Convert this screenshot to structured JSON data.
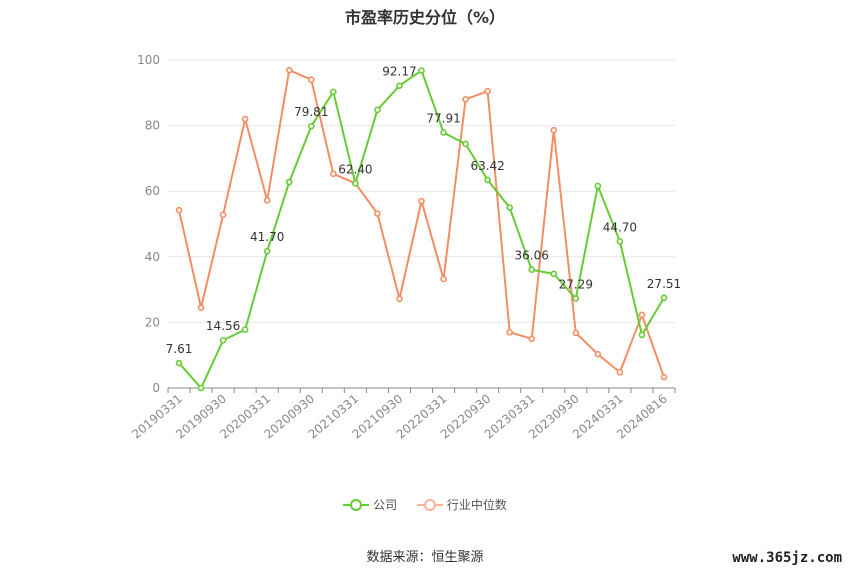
{
  "title": "市盈率历史分位（%）",
  "source": "数据来源：恒生聚源",
  "watermark": "www.365jz.com",
  "chart_data": {
    "type": "line",
    "title": "市盈率历史分位（%）",
    "ylim": [
      0,
      100
    ],
    "yticks": [
      0,
      20,
      40,
      60,
      80,
      100
    ],
    "grid": true,
    "legend_position": "bottom",
    "x_tick_labels": [
      "20190331",
      "20190930",
      "20200331",
      "20200930",
      "20210331",
      "20210930",
      "20220331",
      "20220930",
      "20230331",
      "20230930",
      "20240331",
      "20240816"
    ],
    "x": [
      "20190331",
      "20190630",
      "20190930",
      "20191231",
      "20200331",
      "20200630",
      "20200930",
      "20201231",
      "20210331",
      "20210630",
      "20210930",
      "20211231",
      "20220331",
      "20220630",
      "20220930",
      "20221231",
      "20230331",
      "20230630",
      "20230930",
      "20231231",
      "20240331",
      "20240630",
      "20240816"
    ],
    "series": [
      {
        "name": "公司",
        "color": "#66cc33",
        "values": [
          7.61,
          0,
          14.56,
          17.8,
          41.7,
          62.8,
          79.81,
          90.3,
          62.4,
          84.8,
          92.17,
          96.8,
          77.91,
          74.4,
          63.42,
          55.0,
          36.06,
          34.8,
          27.29,
          61.6,
          44.7,
          16.2,
          27.51
        ],
        "labels": {
          "0": "7.61",
          "2": "14.56",
          "4": "41.70",
          "6": "79.81",
          "8": "62.40",
          "10": "92.17",
          "12": "77.91",
          "14": "63.42",
          "16": "36.06",
          "18": "27.29",
          "20": "44.70",
          "22": "27.51"
        }
      },
      {
        "name": "行业中位数",
        "color": "#f28e63",
        "values": [
          54.2,
          24.5,
          52.8,
          82.0,
          57.2,
          96.9,
          94.0,
          65.3,
          62.4,
          53.2,
          27.2,
          57.0,
          33.2,
          88.0,
          90.5,
          17.0,
          15.0,
          78.6,
          16.8,
          10.3,
          4.8,
          22.3,
          3.3
        ],
        "labels": {}
      }
    ]
  }
}
